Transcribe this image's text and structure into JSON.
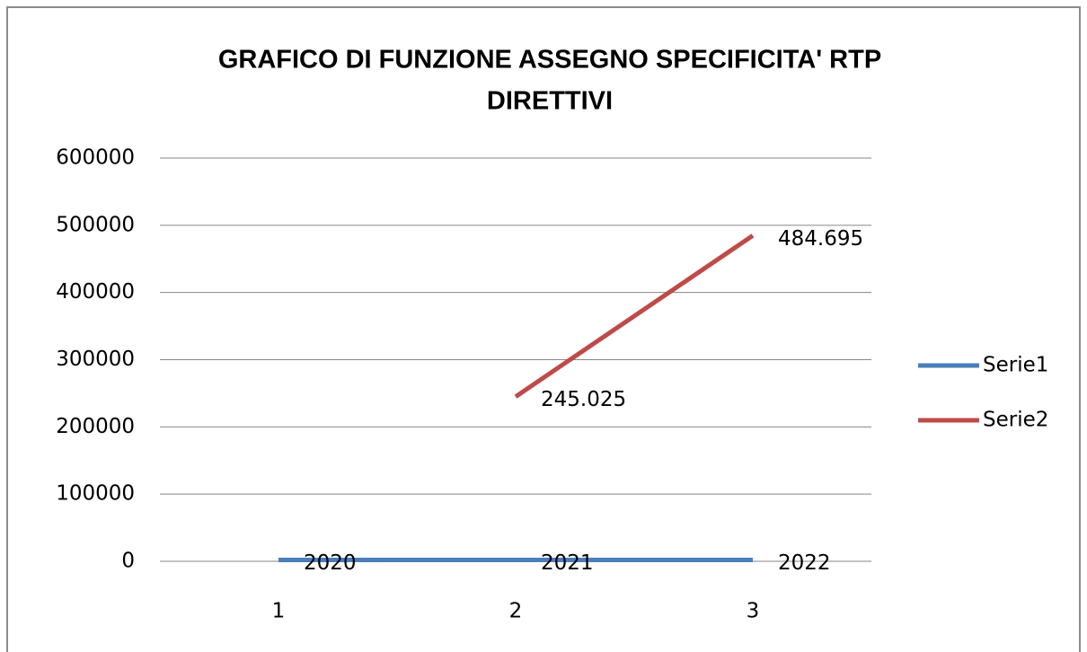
{
  "chart_data": {
    "type": "line",
    "title": [
      "GRAFICO DI FUNZIONE ASSEGNO SPECIFICITA' RTP",
      "DIRETTIVI"
    ],
    "categories": [
      "1",
      "2",
      "3"
    ],
    "series": [
      {
        "name": "Serie1",
        "color": "#4a7ebb",
        "values": [
          2020,
          2021,
          2022
        ]
      },
      {
        "name": "Serie2",
        "color": "#be4b48",
        "values": [
          null,
          245025,
          484695
        ],
        "value_labels": [
          null,
          "245.025",
          "484.695"
        ]
      }
    ],
    "ylim": [
      0,
      600000
    ],
    "yticks": [
      0,
      100000,
      200000,
      300000,
      400000,
      500000,
      600000
    ],
    "grid": true,
    "legend": "right"
  }
}
